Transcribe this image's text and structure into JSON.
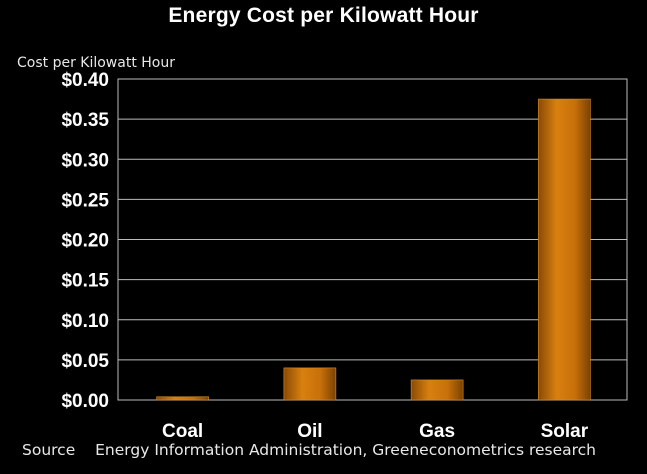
{
  "chart_data": {
    "type": "bar",
    "title": "Energy Cost per Kilowatt Hour",
    "ylabel": "Cost per Kilowatt Hour",
    "xlabel": "",
    "categories": [
      "Coal",
      "Oil",
      "Gas",
      "Solar"
    ],
    "values": [
      0.004,
      0.04,
      0.025,
      0.375
    ],
    "ylim": [
      0,
      0.4
    ],
    "yticks": [
      "$0.00",
      "$0.05",
      "$0.10",
      "$0.15",
      "$0.20",
      "$0.25",
      "$0.30",
      "$0.35",
      "$0.40"
    ],
    "grid": true,
    "bar_color": "#c8700a",
    "background": "#000000"
  },
  "source": {
    "label": "Source",
    "text": "Energy Information Administration, Greeneconometrics research"
  }
}
